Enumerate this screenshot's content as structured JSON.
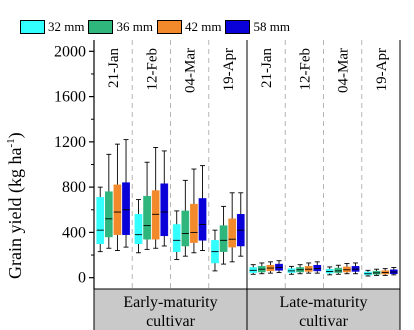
{
  "chart_data": {
    "type": "boxplot",
    "ylabel": "Grain yield (kg ha",
    "ylabel_sup": "-1",
    "ylabel_close": ")",
    "ylim": [
      -100,
      2100
    ],
    "yticks": [
      0,
      400,
      800,
      1200,
      1600,
      2000
    ],
    "ytick_labels": [
      "0",
      "400",
      "800",
      "1200",
      "1600",
      "2000"
    ],
    "legend": [
      {
        "name": "32 mm",
        "color": "#33ffff"
      },
      {
        "name": "36 mm",
        "color": "#2eb67d"
      },
      {
        "name": "42 mm",
        "color": "#f28a2c"
      },
      {
        "name": "58 mm",
        "color": "#0a00d8"
      }
    ],
    "sowing_dates": [
      "21-Jan",
      "12-Feb",
      "04-Mar",
      "19-Apr"
    ],
    "cultivars": [
      "Early-maturity cultivar",
      "Late-maturity cultivar"
    ],
    "groups": [
      {
        "cultivar": 0,
        "date": 0,
        "boxes": [
          {
            "min": 230,
            "q1": 300,
            "median": 420,
            "q3": 710,
            "max": 800
          },
          {
            "min": 260,
            "q1": 360,
            "median": 520,
            "q3": 760,
            "max": 1090
          },
          {
            "min": 240,
            "q1": 380,
            "median": 580,
            "q3": 820,
            "max": 1180
          },
          {
            "min": 270,
            "q1": 380,
            "median": 600,
            "q3": 840,
            "max": 1220
          }
        ]
      },
      {
        "cultivar": 0,
        "date": 1,
        "boxes": [
          {
            "min": 220,
            "q1": 300,
            "median": 380,
            "q3": 560,
            "max": 690
          },
          {
            "min": 250,
            "q1": 340,
            "median": 460,
            "q3": 720,
            "max": 1020
          },
          {
            "min": 260,
            "q1": 340,
            "median": 560,
            "q3": 770,
            "max": 1150
          },
          {
            "min": 280,
            "q1": 370,
            "median": 580,
            "q3": 830,
            "max": 1120
          }
        ]
      },
      {
        "cultivar": 0,
        "date": 2,
        "boxes": [
          {
            "min": 160,
            "q1": 230,
            "median": 330,
            "q3": 470,
            "max": 590
          },
          {
            "min": 190,
            "q1": 280,
            "median": 390,
            "q3": 590,
            "max": 860
          },
          {
            "min": 220,
            "q1": 310,
            "median": 400,
            "q3": 650,
            "max": 960
          },
          {
            "min": 240,
            "q1": 330,
            "median": 470,
            "q3": 700,
            "max": 990
          }
        ]
      },
      {
        "cultivar": 0,
        "date": 3,
        "boxes": [
          {
            "min": 60,
            "q1": 130,
            "median": 230,
            "q3": 330,
            "max": 420
          },
          {
            "min": 120,
            "q1": 230,
            "median": 330,
            "q3": 460,
            "max": 630
          },
          {
            "min": 140,
            "q1": 270,
            "median": 340,
            "q3": 520,
            "max": 750
          },
          {
            "min": 190,
            "q1": 280,
            "median": 420,
            "q3": 560,
            "max": 750
          }
        ]
      },
      {
        "cultivar": 1,
        "date": 0,
        "boxes": [
          {
            "min": 30,
            "q1": 45,
            "median": 65,
            "q3": 90,
            "max": 115
          },
          {
            "min": 35,
            "q1": 50,
            "median": 75,
            "q3": 100,
            "max": 130
          },
          {
            "min": 40,
            "q1": 60,
            "median": 85,
            "q3": 110,
            "max": 140
          },
          {
            "min": 45,
            "q1": 65,
            "median": 90,
            "q3": 120,
            "max": 150
          }
        ]
      },
      {
        "cultivar": 1,
        "date": 1,
        "boxes": [
          {
            "min": 30,
            "q1": 45,
            "median": 60,
            "q3": 80,
            "max": 100
          },
          {
            "min": 35,
            "q1": 50,
            "median": 70,
            "q3": 90,
            "max": 115
          },
          {
            "min": 40,
            "q1": 55,
            "median": 75,
            "q3": 100,
            "max": 130
          },
          {
            "min": 40,
            "q1": 60,
            "median": 80,
            "q3": 110,
            "max": 140
          }
        ]
      },
      {
        "cultivar": 1,
        "date": 2,
        "boxes": [
          {
            "min": 25,
            "q1": 40,
            "median": 55,
            "q3": 75,
            "max": 95
          },
          {
            "min": 30,
            "q1": 45,
            "median": 60,
            "q3": 85,
            "max": 110
          },
          {
            "min": 35,
            "q1": 50,
            "median": 70,
            "q3": 95,
            "max": 125
          },
          {
            "min": 35,
            "q1": 55,
            "median": 75,
            "q3": 100,
            "max": 130
          }
        ]
      },
      {
        "cultivar": 1,
        "date": 3,
        "boxes": [
          {
            "min": 15,
            "q1": 25,
            "median": 35,
            "q3": 50,
            "max": 65
          },
          {
            "min": 20,
            "q1": 30,
            "median": 42,
            "q3": 58,
            "max": 75
          },
          {
            "min": 20,
            "q1": 32,
            "median": 45,
            "q3": 62,
            "max": 80
          },
          {
            "min": 25,
            "q1": 35,
            "median": 50,
            "q3": 70,
            "max": 90
          }
        ]
      }
    ]
  }
}
